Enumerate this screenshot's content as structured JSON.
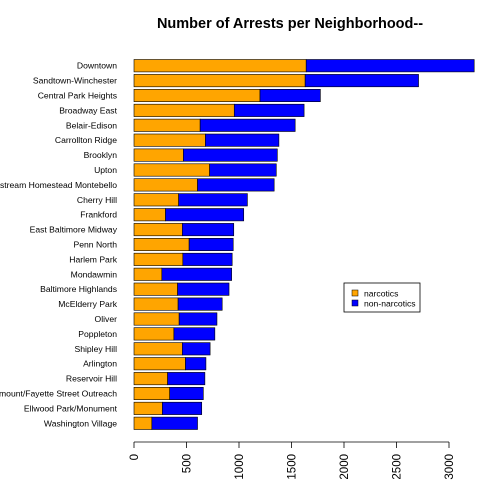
{
  "chart_data": {
    "type": "bar",
    "orientation": "horizontal",
    "stacked": true,
    "title": "Number of Arrests per Neighborhood--",
    "xlabel": "",
    "ylabel": "",
    "xlim": [
      0,
      3200
    ],
    "x_ticks": [
      0,
      500,
      1000,
      1500,
      2000,
      2500,
      3000
    ],
    "grid": false,
    "legend_position": "right",
    "categories": [
      "Downtown",
      "Sandtown-Winchester",
      "Central Park Heights",
      "Broadway East",
      "Belair-Edison",
      "Carrollton Ridge",
      "Brooklyn",
      "Upton",
      "Coldstream Homestead Montebello",
      "Cherry Hill",
      "Frankford",
      "East Baltimore Midway",
      "Penn North",
      "Harlem Park",
      "Mondawmin",
      "Baltimore Highlands",
      "McElderry Park",
      "Oliver",
      "Poppleton",
      "Shipley Hill",
      "Arlington",
      "Reservoir Hill",
      "Greenmount/Fayette Street Outreach",
      "Ellwood Park/Monument",
      "Washington Village"
    ],
    "series": [
      {
        "name": "narcotics",
        "color": "#FFA500",
        "values": [
          1640,
          1630,
          1200,
          955,
          630,
          680,
          470,
          720,
          605,
          425,
          300,
          460,
          525,
          465,
          265,
          415,
          420,
          430,
          380,
          460,
          490,
          320,
          340,
          270,
          170
        ]
      },
      {
        "name": "non-narcotics",
        "color": "#0000FF",
        "values": [
          1600,
          1080,
          575,
          665,
          905,
          700,
          895,
          635,
          730,
          655,
          745,
          490,
          420,
          470,
          665,
          490,
          420,
          360,
          390,
          265,
          195,
          355,
          320,
          375,
          435
        ]
      }
    ]
  }
}
